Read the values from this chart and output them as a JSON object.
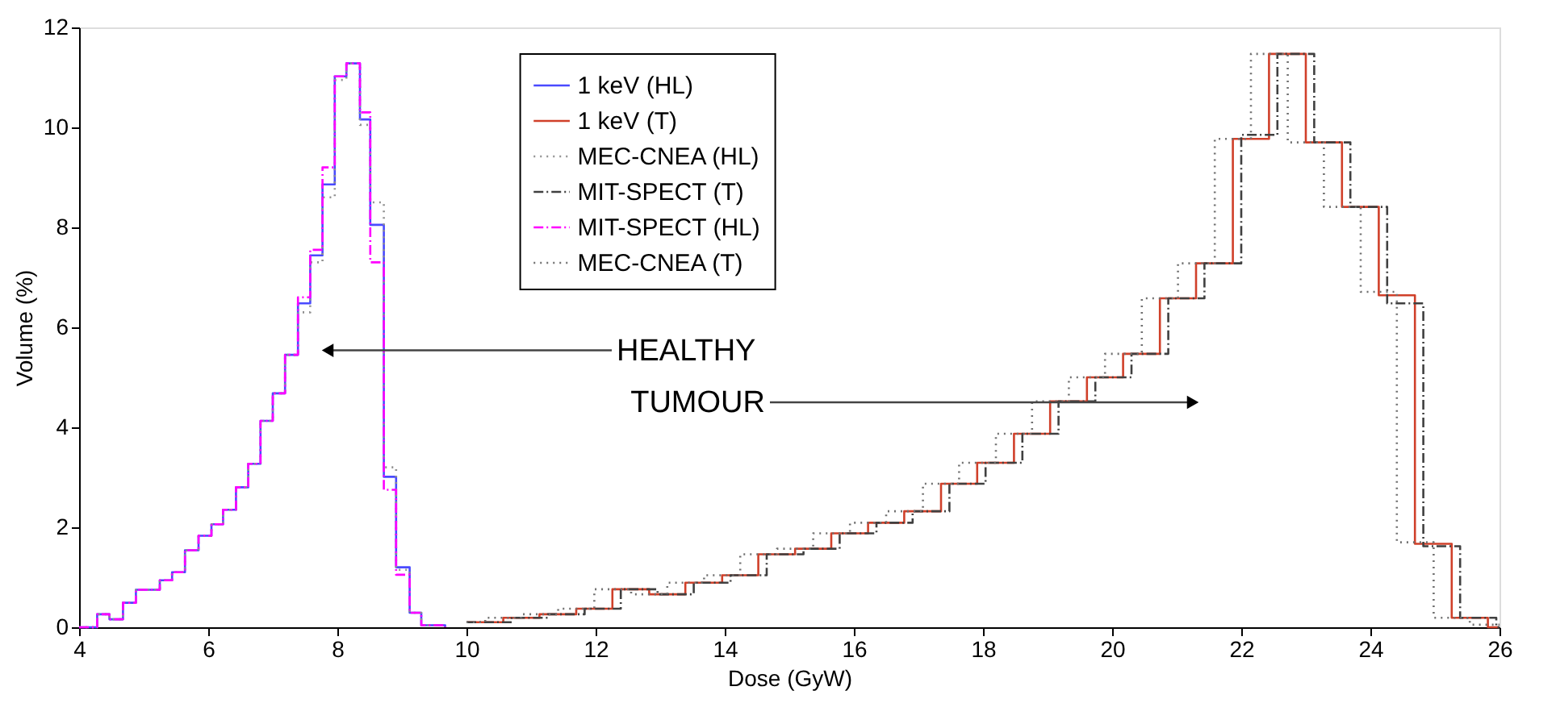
{
  "chart_data": {
    "type": "step",
    "xlabel": "Dose (GyW)",
    "ylabel": "Volume (%)",
    "xlim": [
      4,
      26
    ],
    "xticks": [
      4,
      6,
      8,
      10,
      12,
      14,
      16,
      18,
      20,
      22,
      24,
      26
    ],
    "ylim": [
      0,
      12
    ],
    "yticks": [
      0,
      2,
      4,
      6,
      8,
      10,
      12
    ],
    "grid": false,
    "legend": "top",
    "marker": "none",
    "annotations": [
      {
        "text": "HEALTHY",
        "x": 7.85,
        "y": 5.54
      },
      {
        "text": "TUMOUR",
        "x": 21.25,
        "y": 4.5
      }
    ],
    "series": [
      {
        "name": "1 keV (HL)",
        "color": "#4a4aff",
        "line_style": "solid",
        "x": [
          4.0,
          4.28,
          4.47,
          4.68,
          4.88,
          5.25,
          5.44,
          5.64,
          5.85,
          6.05,
          6.23,
          6.43,
          6.62,
          6.81,
          7.0,
          7.19,
          7.39,
          7.58,
          7.77,
          7.96,
          8.14,
          8.35,
          8.51,
          8.72,
          8.91,
          9.12,
          9.3,
          9.67
        ],
        "values": [
          0,
          0.26,
          0.16,
          0.49,
          0.75,
          0.94,
          1.1,
          1.54,
          1.83,
          2.06,
          2.35,
          2.8,
          3.27,
          4.13,
          4.68,
          5.45,
          6.48,
          7.44,
          8.86,
          11.02,
          11.28,
          10.16,
          8.05,
          3.01,
          1.2,
          0.29,
          0.04,
          0
        ]
      },
      {
        "name": "1 keV (T)",
        "color": "#d0402a",
        "line_style": "solid",
        "x": [
          10.0,
          10.57,
          11.13,
          11.7,
          12.26,
          12.83,
          13.39,
          13.96,
          14.52,
          15.09,
          15.65,
          16.22,
          16.78,
          17.35,
          17.91,
          18.48,
          19.04,
          19.61,
          20.17,
          20.74,
          21.3,
          21.87,
          22.43,
          23.0,
          23.56,
          24.13,
          24.69,
          25.26,
          25.82,
          26.0
        ],
        "values": [
          0.1,
          0.19,
          0.26,
          0.37,
          0.76,
          0.66,
          0.89,
          1.04,
          1.46,
          1.57,
          1.88,
          2.09,
          2.32,
          2.87,
          3.29,
          3.87,
          4.52,
          5.0,
          5.47,
          6.58,
          7.28,
          9.77,
          11.47,
          9.7,
          8.41,
          6.64,
          1.67,
          0.19,
          0,
          0
        ]
      },
      {
        "name": "MEC-CNEA (HL)",
        "color": "#909090",
        "line_style": "dotted",
        "x": [
          4.0,
          4.28,
          4.47,
          4.68,
          4.88,
          5.25,
          5.44,
          5.64,
          5.85,
          6.05,
          6.23,
          6.43,
          6.62,
          6.81,
          7.0,
          7.19,
          7.39,
          7.58,
          7.77,
          7.96,
          8.14,
          8.35,
          8.51,
          8.72,
          8.91,
          9.12,
          9.3,
          9.67
        ],
        "values": [
          0,
          0.26,
          0.16,
          0.49,
          0.75,
          0.94,
          1.1,
          1.54,
          1.83,
          2.06,
          2.35,
          2.8,
          3.27,
          4.13,
          4.68,
          5.45,
          6.3,
          7.3,
          8.6,
          10.95,
          11.28,
          10.05,
          8.5,
          3.2,
          1.15,
          0.29,
          0.04,
          0
        ]
      },
      {
        "name": "MIT-SPECT (T)",
        "color": "#404040",
        "line_style": "dashdot",
        "x": [
          10.0,
          10.7,
          11.26,
          11.83,
          12.39,
          12.96,
          13.52,
          14.09,
          14.65,
          15.22,
          15.78,
          16.35,
          16.91,
          17.48,
          18.04,
          18.61,
          19.17,
          19.74,
          20.3,
          20.87,
          21.43,
          22.0,
          22.56,
          23.13,
          23.69,
          24.26,
          24.82,
          25.39,
          25.95,
          26.0
        ],
        "values": [
          0.1,
          0.19,
          0.26,
          0.37,
          0.76,
          0.66,
          0.89,
          1.04,
          1.46,
          1.57,
          1.88,
          2.09,
          2.32,
          2.87,
          3.29,
          3.87,
          4.52,
          5.0,
          5.47,
          6.58,
          7.28,
          9.85,
          11.47,
          9.7,
          8.41,
          6.48,
          1.62,
          0.19,
          0,
          0
        ]
      },
      {
        "name": "MIT-SPECT (HL)",
        "color": "#ff00ff",
        "line_style": "dashdot",
        "x": [
          4.0,
          4.28,
          4.47,
          4.68,
          4.88,
          5.25,
          5.44,
          5.64,
          5.85,
          6.05,
          6.23,
          6.43,
          6.62,
          6.81,
          7.0,
          7.19,
          7.39,
          7.58,
          7.77,
          7.96,
          8.14,
          8.35,
          8.51,
          8.72,
          8.91,
          9.12,
          9.3,
          9.67
        ],
        "values": [
          0,
          0.26,
          0.16,
          0.49,
          0.75,
          0.94,
          1.1,
          1.54,
          1.83,
          2.06,
          2.35,
          2.8,
          3.27,
          4.13,
          4.68,
          5.45,
          6.6,
          7.55,
          9.2,
          11.02,
          11.28,
          10.3,
          7.3,
          2.75,
          1.05,
          0.29,
          0.04,
          0
        ]
      },
      {
        "name": "MEC-CNEA (T)",
        "color": "#707070",
        "line_style": "dotted",
        "x": [
          10.0,
          10.29,
          10.85,
          11.42,
          11.98,
          12.55,
          13.11,
          13.68,
          14.24,
          14.81,
          15.37,
          15.94,
          16.5,
          17.07,
          17.63,
          18.2,
          18.76,
          19.33,
          19.89,
          20.46,
          21.02,
          21.59,
          22.15,
          22.72,
          23.28,
          23.85,
          24.41,
          24.98,
          25.54,
          26.0
        ],
        "values": [
          0.1,
          0.19,
          0.26,
          0.37,
          0.76,
          0.66,
          0.89,
          1.04,
          1.46,
          1.57,
          1.88,
          2.09,
          2.32,
          2.87,
          3.29,
          3.87,
          4.52,
          5.0,
          5.47,
          6.58,
          7.28,
          9.77,
          11.47,
          9.7,
          8.41,
          6.71,
          1.7,
          0.19,
          0.05,
          0.05
        ]
      }
    ]
  }
}
